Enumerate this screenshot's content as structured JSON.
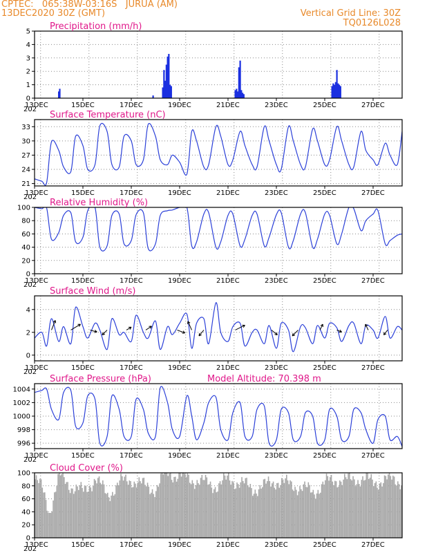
{
  "header": {
    "station": "CPTEC:   065:38W-03:16S   JURUA (AM)",
    "run": "13DEC2020 30Z (GMT)",
    "grid_note": "Vertical Grid Line: 30Z",
    "code": "TQ0126L028"
  },
  "x_tick_labels": [
    "13DEC",
    "15DEC",
    "17DEC",
    "19DEC",
    "21DEC",
    "23DEC",
    "25DEC",
    "27DEC"
  ],
  "x_year_label": "202",
  "colors": {
    "line": "#2a3fd8",
    "bar": "#1a2fe0",
    "cloud": "#a8a8a8",
    "title": "#e0188a",
    "header": "#e8892a"
  },
  "chart_data": [
    {
      "type": "bar",
      "title": "Precipitation (mm/h)",
      "ylim": [
        0,
        5
      ],
      "yticks": [
        0,
        1,
        2,
        3,
        4,
        5
      ],
      "x_unit": "days since 13DEC",
      "x": [
        1.0,
        1.04,
        4.9,
        5.3,
        5.35,
        5.4,
        5.45,
        5.5,
        5.55,
        5.6,
        5.65,
        8.3,
        8.35,
        8.4,
        8.45,
        8.5,
        8.55,
        8.6,
        8.65,
        12.3,
        12.35,
        12.4,
        12.45,
        12.5,
        12.55,
        12.6,
        12.65
      ],
      "values": [
        0.5,
        0.7,
        0.2,
        0.8,
        2.1,
        1.3,
        2.5,
        3.1,
        3.3,
        1.0,
        0.9,
        0.6,
        0.7,
        0.5,
        2.3,
        2.8,
        0.6,
        0.4,
        0.3,
        0.9,
        1.1,
        1.0,
        1.2,
        2.1,
        1.1,
        1.0,
        0.9
      ]
    },
    {
      "type": "line",
      "title": "Surface Temperature (nC)",
      "ylim": [
        20.5,
        34.5
      ],
      "yticks": [
        21,
        24,
        27,
        30,
        33
      ],
      "x": [
        0,
        0.3,
        0.5,
        0.7,
        1.0,
        1.2,
        1.5,
        1.7,
        2.0,
        2.2,
        2.5,
        2.7,
        3.0,
        3.2,
        3.5,
        3.7,
        4.0,
        4.2,
        4.5,
        4.7,
        5.0,
        5.2,
        5.5,
        5.7,
        6.0,
        6.3,
        6.5,
        6.7,
        7.0,
        7.2,
        7.5,
        7.7,
        8.0,
        8.2,
        8.5,
        8.7,
        9.0,
        9.2,
        9.5,
        9.7,
        10.0,
        10.2,
        10.5,
        10.7,
        11.0,
        11.2,
        11.5,
        11.7,
        12.0,
        12.2,
        12.5,
        12.7,
        13.0,
        13.2,
        13.5,
        13.7,
        14.0,
        14.2,
        14.5,
        14.7,
        15.0,
        15.2
      ],
      "y": [
        22,
        21.5,
        21.2,
        29.8,
        28,
        24.5,
        23.5,
        31,
        29,
        24,
        25,
        33.2,
        32,
        25,
        24.5,
        31,
        30,
        25,
        26,
        33.5,
        31,
        26,
        25,
        27,
        25.5,
        23,
        32,
        30,
        24.5,
        25,
        33,
        31,
        25,
        26,
        32,
        29,
        25,
        24.5,
        33,
        30,
        25,
        24,
        33,
        30,
        25,
        24.5,
        32.5,
        30,
        25,
        26,
        33,
        30,
        25,
        24.5,
        32,
        28,
        26,
        25,
        29.5,
        27,
        25,
        32
      ]
    },
    {
      "type": "line",
      "title": "Relative Humidity (%)",
      "ylim": [
        0,
        100
      ],
      "yticks": [
        0,
        20,
        40,
        60,
        80,
        100
      ],
      "x": [
        0,
        0.3,
        0.5,
        0.7,
        1.0,
        1.2,
        1.5,
        1.7,
        2.0,
        2.2,
        2.5,
        2.7,
        3.0,
        3.2,
        3.5,
        3.7,
        4.0,
        4.2,
        4.5,
        4.7,
        5.0,
        5.2,
        5.5,
        5.7,
        6.0,
        6.3,
        6.5,
        6.7,
        7.0,
        7.2,
        7.5,
        7.7,
        8.0,
        8.2,
        8.5,
        8.7,
        9.0,
        9.2,
        9.5,
        9.7,
        10.0,
        10.2,
        10.5,
        10.7,
        11.0,
        11.2,
        11.5,
        11.7,
        12.0,
        12.2,
        12.5,
        12.7,
        13.0,
        13.2,
        13.5,
        13.7,
        14.0,
        14.2,
        14.5,
        14.7,
        15.0,
        15.2
      ],
      "y": [
        100,
        98,
        99,
        52,
        62,
        88,
        92,
        48,
        55,
        95,
        100,
        40,
        42,
        88,
        90,
        45,
        50,
        89,
        92,
        38,
        45,
        88,
        95,
        96,
        100,
        100,
        42,
        48,
        90,
        92,
        40,
        48,
        88,
        90,
        42,
        52,
        88,
        90,
        42,
        55,
        89,
        92,
        40,
        50,
        90,
        92,
        40,
        52,
        90,
        88,
        45,
        60,
        100,
        98,
        65,
        80,
        90,
        95,
        45,
        50,
        58,
        60
      ]
    },
    {
      "type": "line",
      "title": "Surface Wind (m/s)",
      "ylim": [
        -0.5,
        5.2
      ],
      "yticks": [
        0,
        2,
        4
      ],
      "x": [
        0,
        0.3,
        0.5,
        0.7,
        1.0,
        1.2,
        1.5,
        1.7,
        2.0,
        2.2,
        2.5,
        2.7,
        3.0,
        3.2,
        3.5,
        3.7,
        4.0,
        4.2,
        4.5,
        4.7,
        5.0,
        5.2,
        5.5,
        5.7,
        6.0,
        6.3,
        6.5,
        6.7,
        7.0,
        7.2,
        7.5,
        7.7,
        8.0,
        8.2,
        8.5,
        8.7,
        9.0,
        9.2,
        9.5,
        9.7,
        10.0,
        10.2,
        10.5,
        10.7,
        11.0,
        11.2,
        11.5,
        11.7,
        12.0,
        12.2,
        12.5,
        12.7,
        13.0,
        13.2,
        13.5,
        13.7,
        14.0,
        14.2,
        14.5,
        14.7,
        15.0,
        15.2
      ],
      "y": [
        1.5,
        2,
        0.8,
        3.2,
        1.2,
        2.5,
        1.0,
        4.2,
        2.5,
        1.5,
        2.8,
        2.2,
        0.5,
        3.2,
        1.8,
        2.0,
        1.2,
        3.5,
        2.0,
        1.5,
        3.0,
        0.5,
        2.5,
        1.8,
        2.8,
        3.6,
        0.6,
        2.8,
        3.2,
        1.0,
        4.6,
        2.0,
        1.2,
        2.5,
        2.8,
        0.8,
        2.0,
        2.2,
        1.0,
        2.6,
        0.6,
        2.8,
        2.2,
        0.3,
        2.5,
        2.4,
        1.0,
        2.6,
        1.5,
        2.8,
        2.4,
        1.2,
        2.6,
        2.8,
        1.0,
        2.6,
        2.2,
        1.5,
        3.4,
        1.5,
        2.5,
        2.2
      ],
      "vectors": [
        {
          "x": 0.7,
          "y": 2.2,
          "u": 0.4,
          "v": 1.0
        },
        {
          "x": 1.5,
          "y": 2.2,
          "u": 1.0,
          "v": 0.6
        },
        {
          "x": 2.3,
          "y": 2.2,
          "u": 0.7,
          "v": -0.2
        },
        {
          "x": 3.0,
          "y": 2.2,
          "u": -0.5,
          "v": -0.5
        },
        {
          "x": 3.8,
          "y": 2.2,
          "u": 0.5,
          "v": 0.3
        },
        {
          "x": 4.6,
          "y": 2.2,
          "u": 0.6,
          "v": 0.4
        },
        {
          "x": 5.9,
          "y": 2.2,
          "u": 0.8,
          "v": -0.3
        },
        {
          "x": 6.5,
          "y": 2.2,
          "u": -0.4,
          "v": 0.9
        },
        {
          "x": 7.0,
          "y": 2.2,
          "u": -0.5,
          "v": -0.6
        },
        {
          "x": 8.3,
          "y": 2.2,
          "u": 1.0,
          "v": 0.5
        },
        {
          "x": 9.8,
          "y": 2.2,
          "u": 0.6,
          "v": -0.5
        },
        {
          "x": 10.9,
          "y": 2.2,
          "u": -0.6,
          "v": -0.6
        },
        {
          "x": 11.8,
          "y": 2.2,
          "u": 0.3,
          "v": 0.6
        },
        {
          "x": 12.5,
          "y": 2.2,
          "u": 0.5,
          "v": -0.2
        },
        {
          "x": 13.8,
          "y": 2.2,
          "u": -0.3,
          "v": 0.6
        },
        {
          "x": 14.6,
          "y": 2.2,
          "u": -0.4,
          "v": -0.5
        }
      ]
    },
    {
      "type": "line",
      "title": "Surface Pressure (hPa)",
      "annotation": "Model Altitude: 70.398 m",
      "ylim": [
        995.2,
        1004.8
      ],
      "yticks": [
        996,
        998,
        1000,
        1002,
        1004
      ],
      "x": [
        0,
        0.3,
        0.5,
        0.7,
        1.0,
        1.2,
        1.5,
        1.7,
        2.0,
        2.2,
        2.5,
        2.7,
        3.0,
        3.2,
        3.5,
        3.7,
        4.0,
        4.2,
        4.5,
        4.7,
        5.0,
        5.2,
        5.5,
        5.7,
        6.0,
        6.3,
        6.5,
        6.7,
        7.0,
        7.2,
        7.5,
        7.7,
        8.0,
        8.2,
        8.5,
        8.7,
        9.0,
        9.2,
        9.5,
        9.7,
        10.0,
        10.2,
        10.5,
        10.7,
        11.0,
        11.2,
        11.5,
        11.7,
        12.0,
        12.2,
        12.5,
        12.7,
        13.0,
        13.2,
        13.5,
        13.7,
        14.0,
        14.2,
        14.5,
        14.7,
        15.0,
        15.2
      ],
      "y": [
        1003.5,
        1003.8,
        1004,
        1001,
        999.5,
        1003.5,
        1003.8,
        998.5,
        999,
        1003,
        1002.5,
        996,
        997,
        1003,
        1001,
        997,
        997,
        1002.5,
        1001,
        997.5,
        997,
        1004.2,
        1002,
        998,
        997,
        1003,
        1000,
        996.5,
        999,
        1002,
        1002.8,
        998,
        996.5,
        1000.5,
        1002,
        997,
        997,
        1001,
        1001.5,
        996,
        996.5,
        1001,
        1000.5,
        996.5,
        997,
        1000.5,
        1000,
        996,
        996.5,
        1001,
        1000,
        996.5,
        997,
        1001,
        1000.5,
        998,
        996,
        999.5,
        1000,
        996.5,
        997,
        995.5
      ]
    },
    {
      "type": "bar",
      "title": "Cloud Cover (%)",
      "ylim": [
        0,
        100
      ],
      "yticks": [
        0,
        20,
        40,
        60,
        80,
        100
      ],
      "x_range": [
        0,
        15.2
      ],
      "step": 0.05,
      "profile_x": [
        0,
        0.3,
        0.6,
        1.0,
        1.5,
        2.0,
        2.5,
        3.0,
        3.5,
        4.0,
        4.5,
        5.0,
        5.3,
        5.5,
        6.0,
        6.5,
        7.0,
        7.5,
        8.0,
        8.5,
        9.0,
        9.5,
        10.0,
        10.5,
        11.0,
        11.5,
        12.0,
        12.5,
        13.0,
        13.5,
        14.0,
        14.5,
        15.2
      ],
      "profile_y": [
        90,
        75,
        40,
        95,
        80,
        70,
        92,
        65,
        85,
        90,
        80,
        75,
        95,
        100,
        95,
        90,
        85,
        80,
        90,
        85,
        75,
        80,
        88,
        82,
        78,
        70,
        85,
        90,
        88,
        92,
        85,
        90,
        88
      ]
    }
  ]
}
